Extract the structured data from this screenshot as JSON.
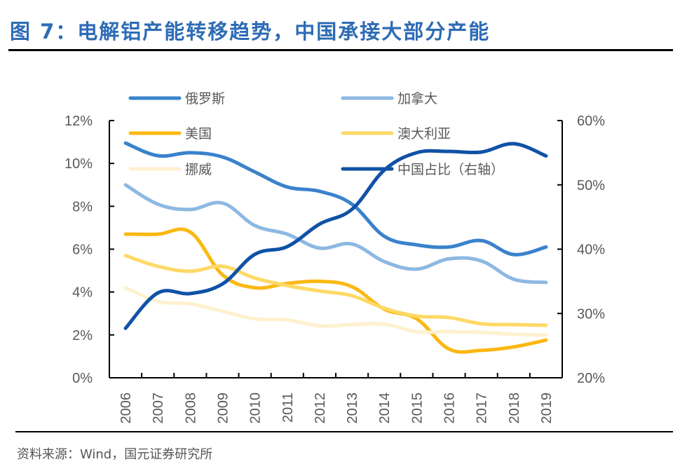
{
  "figure": {
    "title": "图 7：电解铝产能转移趋势，中国承接大部分产能",
    "source": "资料来源：Wind，国元证券研究所"
  },
  "chart_data": {
    "type": "line",
    "title": "图 7：电解铝产能转移趋势，中国承接大部分产能",
    "xlabel": "",
    "ylabel": "",
    "categories": [
      "2006",
      "2007",
      "2008",
      "2009",
      "2010",
      "2011",
      "2012",
      "2013",
      "2014",
      "2015",
      "2016",
      "2017",
      "2018",
      "2019"
    ],
    "y_left": {
      "range": [
        0,
        12
      ],
      "ticks": [
        0,
        2,
        4,
        6,
        8,
        10,
        12
      ],
      "tick_labels": [
        "0%",
        "2%",
        "4%",
        "6%",
        "8%",
        "10%",
        "12%"
      ],
      "unit": "%"
    },
    "y_right": {
      "range": [
        20,
        60
      ],
      "ticks": [
        20,
        30,
        40,
        50,
        60
      ],
      "tick_labels": [
        "20%",
        "30%",
        "40%",
        "50%",
        "60%"
      ],
      "unit": "%"
    },
    "grid": false,
    "legend_position": "top",
    "smooth": true,
    "series": [
      {
        "name": "俄罗斯",
        "axis": "left",
        "color": "#3a82cc",
        "values": [
          10.95,
          10.36,
          10.5,
          10.3,
          9.6,
          8.9,
          8.7,
          8.1,
          6.6,
          6.2,
          6.1,
          6.4,
          5.75,
          6.1
        ]
      },
      {
        "name": "加拿大",
        "axis": "left",
        "color": "#8db8e3",
        "values": [
          9.0,
          8.1,
          7.85,
          8.15,
          7.1,
          6.7,
          6.05,
          6.24,
          5.42,
          5.07,
          5.55,
          5.45,
          4.6,
          4.45
        ]
      },
      {
        "name": "美国",
        "axis": "left",
        "color": "#fbb812",
        "values": [
          6.7,
          6.7,
          6.8,
          4.8,
          4.2,
          4.4,
          4.5,
          4.25,
          3.2,
          2.75,
          1.34,
          1.28,
          1.44,
          1.76
        ]
      },
      {
        "name": "澳大利亚",
        "axis": "left",
        "color": "#fed966",
        "values": [
          5.7,
          5.2,
          4.97,
          5.2,
          4.65,
          4.3,
          4.05,
          3.83,
          3.24,
          2.88,
          2.81,
          2.52,
          2.48,
          2.45
        ]
      },
      {
        "name": "挪威",
        "axis": "left",
        "color": "#fff1cf",
        "values": [
          4.2,
          3.56,
          3.45,
          3.1,
          2.75,
          2.7,
          2.42,
          2.48,
          2.5,
          2.15,
          2.15,
          2.12,
          2.03,
          2.0
        ]
      },
      {
        "name": "中国占比（右轴）",
        "axis": "right",
        "color": "#0f52a6",
        "values": [
          27.7,
          33.2,
          33.1,
          34.6,
          39.2,
          40.4,
          43.9,
          46.2,
          52.3,
          55.0,
          55.2,
          55.1,
          56.4,
          54.5
        ]
      }
    ]
  }
}
